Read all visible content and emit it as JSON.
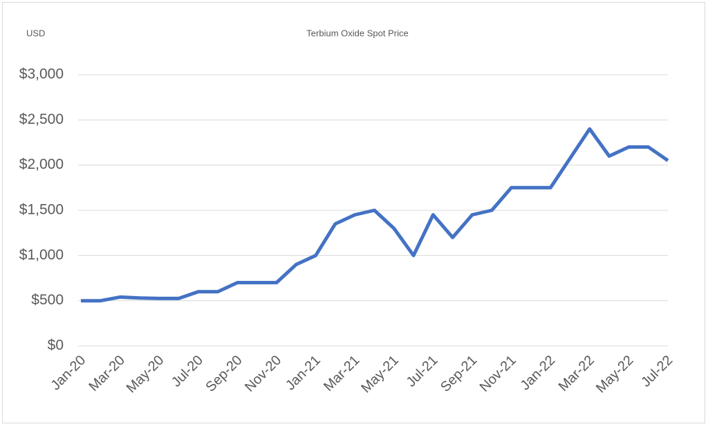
{
  "chart_data": {
    "type": "line",
    "title": "Terbium Oxide Spot Price",
    "y_label": "USD",
    "categories": [
      "Jan-20",
      null,
      "Mar-20",
      null,
      "May-20",
      null,
      "Jul-20",
      null,
      "Sep-20",
      null,
      "Nov-20",
      null,
      "Jan-21",
      null,
      "Mar-21",
      null,
      "May-21",
      null,
      "Jul-21",
      null,
      "Sep-21",
      null,
      "Nov-21",
      null,
      "Jan-22",
      null,
      "Mar-22",
      null,
      "May-22",
      null,
      "Jul-22"
    ],
    "series": [
      {
        "name": "Terbium Oxide",
        "color": "#4472c4",
        "values": [
          500,
          500,
          540,
          530,
          525,
          525,
          600,
          600,
          700,
          700,
          700,
          900,
          1000,
          1350,
          1450,
          1500,
          1300,
          1000,
          1450,
          1200,
          1450,
          1500,
          1750,
          1750,
          1750,
          2075,
          2400,
          2100,
          2200,
          2200,
          2050
        ]
      }
    ],
    "ylim": [
      0,
      3000
    ],
    "yticks": [
      {
        "value": 0,
        "label": "$0"
      },
      {
        "value": 500,
        "label": "$500"
      },
      {
        "value": 1000,
        "label": "$1,000"
      },
      {
        "value": 1500,
        "label": "$1,500"
      },
      {
        "value": 2000,
        "label": "$2,000"
      },
      {
        "value": 2500,
        "label": "$2,500"
      },
      {
        "value": 3000,
        "label": "$3,000"
      }
    ],
    "grid": true
  }
}
